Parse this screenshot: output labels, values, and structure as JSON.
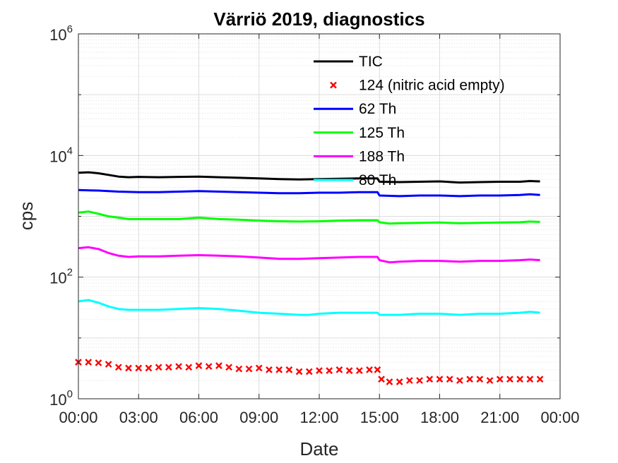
{
  "chart_data": {
    "type": "line",
    "title": "Värriö 2019, diagnostics",
    "xlabel": "Date",
    "ylabel": "cps",
    "yscale": "log",
    "ylim": [
      1,
      1000000
    ],
    "xlim_hours": [
      0,
      24
    ],
    "grid": true,
    "legend_position": "top-right (inside plot)",
    "x_tick_labels": [
      "00:00",
      "03:00",
      "06:00",
      "09:00",
      "12:00",
      "15:00",
      "18:00",
      "21:00",
      "00:00"
    ],
    "y_ticks": [
      {
        "base": "10",
        "exp": "0"
      },
      {
        "base": "10",
        "exp": "2"
      },
      {
        "base": "10",
        "exp": "4"
      },
      {
        "base": "10",
        "exp": "6"
      }
    ],
    "series": [
      {
        "name": "TIC",
        "color": "#000000",
        "style": "line",
        "x": [
          0.0,
          0.5,
          1.0,
          1.5,
          2.0,
          2.5,
          3.0,
          4.0,
          5.0,
          6.0,
          7.0,
          8.0,
          9.0,
          10.0,
          11.0,
          12.0,
          13.0,
          14.0,
          14.9,
          15.0,
          16.0,
          17.0,
          18.0,
          19.0,
          20.0,
          21.0,
          22.0,
          22.5,
          23.0
        ],
        "y": [
          5200,
          5300,
          5100,
          4800,
          4500,
          4400,
          4450,
          4400,
          4450,
          4500,
          4400,
          4300,
          4200,
          4100,
          4050,
          4100,
          4150,
          4200,
          4200,
          3700,
          3650,
          3700,
          3750,
          3600,
          3650,
          3700,
          3700,
          3800,
          3750
        ]
      },
      {
        "name": "124 (nitric acid empty)",
        "color": "#ff0000",
        "style": "marker-x",
        "x": [
          0.0,
          0.5,
          1.0,
          1.5,
          2.0,
          2.5,
          3.0,
          3.5,
          4.0,
          4.5,
          5.0,
          5.5,
          6.0,
          6.5,
          7.0,
          7.5,
          8.0,
          8.5,
          9.0,
          9.5,
          10.0,
          10.5,
          11.0,
          11.5,
          12.0,
          12.5,
          13.0,
          13.5,
          14.0,
          14.5,
          14.9,
          15.1,
          15.5,
          16.0,
          16.5,
          17.0,
          17.5,
          18.0,
          18.5,
          19.0,
          19.5,
          20.0,
          20.5,
          21.0,
          21.5,
          22.0,
          22.5,
          23.0
        ],
        "y": [
          4.0,
          4.0,
          3.9,
          3.7,
          3.3,
          3.2,
          3.2,
          3.2,
          3.3,
          3.3,
          3.4,
          3.3,
          3.5,
          3.4,
          3.5,
          3.3,
          3.1,
          3.1,
          3.2,
          3.0,
          3.0,
          3.0,
          2.8,
          2.8,
          2.9,
          2.9,
          3.0,
          2.9,
          2.9,
          3.0,
          3.0,
          2.1,
          1.9,
          1.9,
          2.0,
          2.0,
          2.1,
          2.1,
          2.1,
          2.0,
          2.1,
          2.1,
          2.0,
          2.1,
          2.1,
          2.1,
          2.1,
          2.1
        ]
      },
      {
        "name": "62 Th",
        "color": "#0000ff",
        "style": "line",
        "x": [
          0.0,
          1.0,
          2.0,
          3.0,
          4.0,
          5.0,
          6.0,
          7.0,
          8.0,
          9.0,
          10.0,
          11.0,
          12.0,
          13.0,
          14.0,
          14.9,
          15.0,
          16.0,
          17.0,
          18.0,
          19.0,
          20.0,
          21.0,
          22.0,
          22.5,
          23.0
        ],
        "y": [
          2700,
          2650,
          2550,
          2500,
          2500,
          2550,
          2600,
          2550,
          2500,
          2450,
          2400,
          2400,
          2450,
          2450,
          2500,
          2500,
          2200,
          2150,
          2200,
          2200,
          2150,
          2200,
          2200,
          2250,
          2300,
          2250
        ]
      },
      {
        "name": "125 Th",
        "color": "#00ff00",
        "style": "line",
        "x": [
          0.0,
          0.5,
          1.0,
          1.5,
          2.0,
          2.5,
          3.0,
          4.0,
          5.0,
          6.0,
          7.0,
          8.0,
          9.0,
          10.0,
          11.0,
          12.0,
          13.0,
          14.0,
          14.9,
          15.0,
          15.5,
          16.0,
          17.0,
          18.0,
          19.0,
          20.0,
          21.0,
          22.0,
          22.5,
          23.0
        ],
        "y": [
          1150,
          1200,
          1100,
          1000,
          950,
          900,
          900,
          900,
          900,
          950,
          900,
          880,
          850,
          830,
          820,
          830,
          850,
          860,
          860,
          800,
          760,
          770,
          780,
          790,
          770,
          780,
          790,
          800,
          820,
          810
        ]
      },
      {
        "name": "188 Th",
        "color": "#ff00ff",
        "style": "line",
        "x": [
          0.0,
          0.5,
          1.0,
          1.5,
          2.0,
          2.5,
          3.0,
          4.0,
          5.0,
          6.0,
          7.0,
          8.0,
          9.0,
          10.0,
          11.0,
          12.0,
          13.0,
          14.0,
          14.9,
          15.0,
          15.5,
          16.0,
          17.0,
          18.0,
          19.0,
          20.0,
          21.0,
          22.0,
          22.5,
          23.0
        ],
        "y": [
          300,
          310,
          290,
          250,
          225,
          215,
          220,
          220,
          225,
          230,
          225,
          220,
          210,
          200,
          200,
          205,
          210,
          215,
          215,
          190,
          175,
          180,
          185,
          185,
          180,
          185,
          185,
          190,
          195,
          190
        ]
      },
      {
        "name": "80 Th",
        "color": "#00ffff",
        "style": "line",
        "x": [
          0.0,
          0.5,
          1.0,
          1.5,
          2.0,
          2.5,
          3.0,
          4.0,
          5.0,
          6.0,
          7.0,
          8.0,
          9.0,
          10.0,
          11.0,
          11.5,
          12.0,
          13.0,
          14.0,
          14.9,
          15.0,
          16.0,
          17.0,
          18.0,
          19.0,
          20.0,
          21.0,
          22.0,
          22.5,
          23.0
        ],
        "y": [
          40,
          42,
          38,
          33,
          30,
          29,
          29,
          29,
          30,
          31,
          30,
          28,
          26,
          25,
          24,
          24,
          25,
          26,
          26,
          26,
          24,
          24,
          25,
          25,
          24,
          25,
          25,
          26,
          27,
          26
        ]
      }
    ]
  }
}
